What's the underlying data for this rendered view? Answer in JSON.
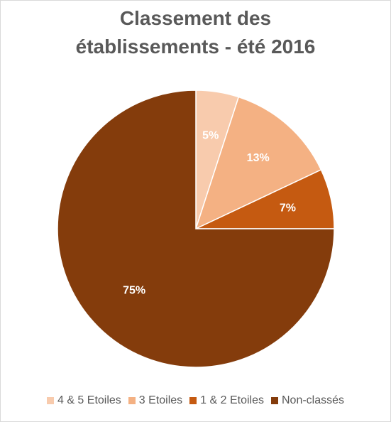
{
  "chart_data": {
    "type": "pie",
    "title_lines": [
      "Classement des",
      "établissements - été 2016"
    ],
    "categories": [
      "4 & 5 Etoiles",
      "3 Etoiles",
      "1 & 2 Etoiles",
      "Non-classés"
    ],
    "values": [
      5,
      13,
      7,
      75
    ],
    "data_labels": [
      "5%",
      "13%",
      "7%",
      "75%"
    ],
    "colors": [
      "#F8CBAD",
      "#F4B183",
      "#C55A11",
      "#843C0C"
    ],
    "label_colors": [
      "#ffffff",
      "#ffffff",
      "#ffffff",
      "#ffffff"
    ],
    "legend_position": "bottom"
  }
}
